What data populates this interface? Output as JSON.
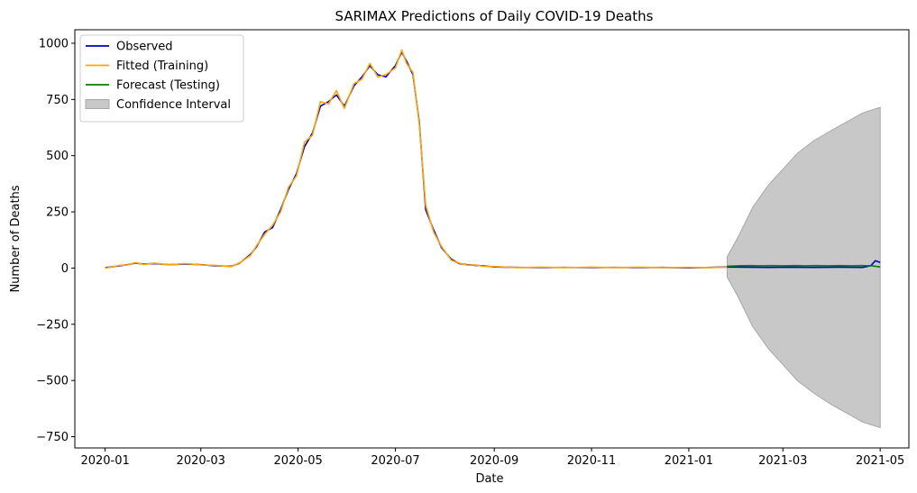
{
  "chart_data": {
    "type": "line",
    "title": "SARIMAX Predictions of Daily COVID-19 Deaths",
    "xlabel": "Date",
    "ylabel": "Number of Deaths",
    "xlim": [
      "2019-12-13",
      "2021-05-19"
    ],
    "ylim": [
      -800,
      1060
    ],
    "x_ticks": [
      "2020-01",
      "2020-03",
      "2020-05",
      "2020-07",
      "2020-09",
      "2020-11",
      "2021-01",
      "2021-03",
      "2021-05"
    ],
    "y_ticks": [
      -750,
      -500,
      -250,
      0,
      250,
      500,
      750,
      1000
    ],
    "y_tick_labels": [
      "−750",
      "−500",
      "−250",
      "0",
      "250",
      "500",
      "750",
      "1000"
    ],
    "grid": false,
    "legend_position": "upper-left",
    "series": [
      {
        "name": "Observed",
        "color": "#0000cd",
        "x": [
          "2020-01-01",
          "2020-01-05",
          "2020-01-10",
          "2020-01-15",
          "2020-01-20",
          "2020-01-25",
          "2020-02-01",
          "2020-02-10",
          "2020-02-20",
          "2020-03-01",
          "2020-03-10",
          "2020-03-20",
          "2020-03-25",
          "2020-04-01",
          "2020-04-05",
          "2020-04-10",
          "2020-04-15",
          "2020-04-20",
          "2020-04-25",
          "2020-04-30",
          "2020-05-05",
          "2020-05-10",
          "2020-05-15",
          "2020-05-20",
          "2020-05-25",
          "2020-05-30",
          "2020-06-05",
          "2020-06-10",
          "2020-06-15",
          "2020-06-20",
          "2020-06-25",
          "2020-07-01",
          "2020-07-05",
          "2020-07-08",
          "2020-07-12",
          "2020-07-16",
          "2020-07-20",
          "2020-07-25",
          "2020-07-30",
          "2020-08-05",
          "2020-08-10",
          "2020-08-15",
          "2020-08-20",
          "2020-08-25",
          "2020-09-01",
          "2020-09-15",
          "2020-10-01",
          "2020-10-15",
          "2020-11-01",
          "2020-11-15",
          "2020-12-01",
          "2020-12-15",
          "2021-01-01",
          "2021-01-15",
          "2021-01-25",
          "2021-02-05",
          "2021-02-20",
          "2021-03-05",
          "2021-03-20",
          "2021-04-05",
          "2021-04-20",
          "2021-04-25",
          "2021-04-28",
          "2021-05-01"
        ],
        "y": [
          2,
          5,
          10,
          15,
          22,
          18,
          20,
          15,
          18,
          15,
          10,
          8,
          20,
          60,
          95,
          160,
          180,
          260,
          350,
          420,
          540,
          600,
          720,
          740,
          770,
          720,
          810,
          850,
          900,
          860,
          850,
          900,
          960,
          920,
          860,
          650,
          260,
          170,
          90,
          40,
          20,
          15,
          12,
          10,
          5,
          3,
          2,
          3,
          2,
          3,
          2,
          3,
          1,
          3,
          5,
          4,
          3,
          4,
          3,
          4,
          3,
          10,
          33,
          25
        ]
      },
      {
        "name": "Fitted (Training)",
        "color": "#ffa500",
        "x": [
          "2020-01-01",
          "2020-01-05",
          "2020-01-10",
          "2020-01-15",
          "2020-01-20",
          "2020-01-25",
          "2020-02-01",
          "2020-02-10",
          "2020-02-20",
          "2020-03-01",
          "2020-03-10",
          "2020-03-20",
          "2020-03-25",
          "2020-04-01",
          "2020-04-05",
          "2020-04-10",
          "2020-04-15",
          "2020-04-20",
          "2020-04-25",
          "2020-04-30",
          "2020-05-05",
          "2020-05-10",
          "2020-05-15",
          "2020-05-20",
          "2020-05-25",
          "2020-05-30",
          "2020-06-05",
          "2020-06-10",
          "2020-06-15",
          "2020-06-20",
          "2020-06-25",
          "2020-07-01",
          "2020-07-05",
          "2020-07-08",
          "2020-07-12",
          "2020-07-16",
          "2020-07-20",
          "2020-07-25",
          "2020-07-30",
          "2020-08-05",
          "2020-08-10",
          "2020-08-15",
          "2020-08-20",
          "2020-08-25",
          "2020-09-01",
          "2020-09-15",
          "2020-10-01",
          "2020-10-15",
          "2020-11-01",
          "2020-11-15",
          "2020-12-01",
          "2020-12-15",
          "2021-01-01",
          "2021-01-15",
          "2021-01-25"
        ],
        "y": [
          0,
          4,
          12,
          14,
          24,
          16,
          22,
          14,
          20,
          14,
          12,
          6,
          22,
          55,
          100,
          150,
          190,
          250,
          360,
          410,
          560,
          590,
          740,
          730,
          790,
          710,
          820,
          840,
          910,
          850,
          860,
          890,
          970,
          910,
          870,
          640,
          280,
          160,
          95,
          35,
          22,
          13,
          14,
          8,
          7,
          2,
          4,
          2,
          4,
          2,
          4,
          2,
          3,
          2,
          4
        ]
      },
      {
        "name": "Forecast (Testing)",
        "color": "#008000",
        "x": [
          "2021-01-25",
          "2021-02-01",
          "2021-02-08",
          "2021-02-15",
          "2021-02-22",
          "2021-03-01",
          "2021-03-08",
          "2021-03-15",
          "2021-03-22",
          "2021-03-29",
          "2021-04-05",
          "2021-04-12",
          "2021-04-19",
          "2021-04-26",
          "2021-05-01"
        ],
        "y": [
          8,
          10,
          11,
          10,
          11,
          10,
          11,
          10,
          11,
          10,
          11,
          10,
          11,
          10,
          5
        ]
      }
    ],
    "confidence_interval": {
      "name": "Confidence Interval",
      "color": "#c8c8c8",
      "x": [
        "2021-01-25",
        "2021-02-01",
        "2021-02-10",
        "2021-02-20",
        "2021-03-01",
        "2021-03-10",
        "2021-03-20",
        "2021-04-01",
        "2021-04-10",
        "2021-04-20",
        "2021-05-01"
      ],
      "upper": [
        50,
        140,
        270,
        370,
        440,
        510,
        565,
        615,
        650,
        690,
        715
      ],
      "lower": [
        -40,
        -130,
        -260,
        -360,
        -430,
        -500,
        -555,
        -610,
        -645,
        -685,
        -710
      ]
    }
  }
}
